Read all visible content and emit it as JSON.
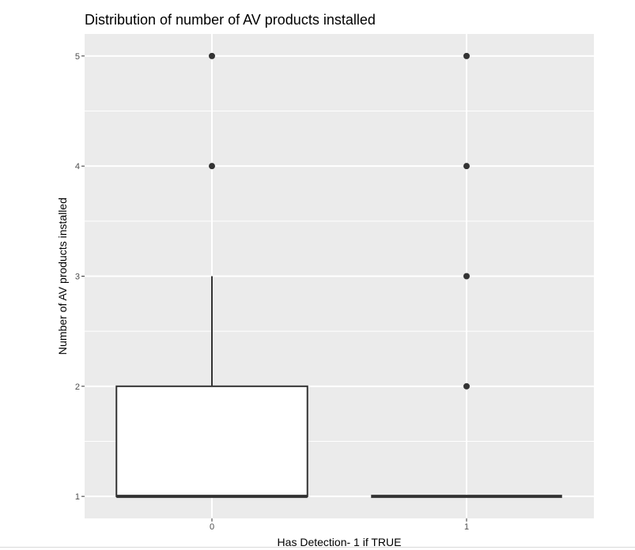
{
  "chart_data": {
    "type": "box",
    "title": "Distribution of number of AV products installed",
    "xlabel": "Has Detection- 1 if TRUE",
    "ylabel": "Number of AV products installed",
    "categories": [
      "0",
      "1"
    ],
    "y_ticks": [
      1,
      2,
      3,
      4,
      5
    ],
    "ylim": [
      0.8,
      5.2
    ],
    "grid": true,
    "boxes": [
      {
        "category": "0",
        "whisker_low": 1,
        "q1": 1,
        "median": 1,
        "q3": 2,
        "whisker_high": 3,
        "outliers": [
          4,
          5
        ]
      },
      {
        "category": "1",
        "whisker_low": 1,
        "q1": 1,
        "median": 1,
        "q3": 1,
        "whisker_high": 1,
        "outliers": [
          2,
          3,
          4,
          5
        ]
      }
    ],
    "colors": {
      "panel": "#ebebeb",
      "grid": "#ffffff",
      "box_fill": "#ffffff",
      "box_stroke": "#333333"
    }
  }
}
